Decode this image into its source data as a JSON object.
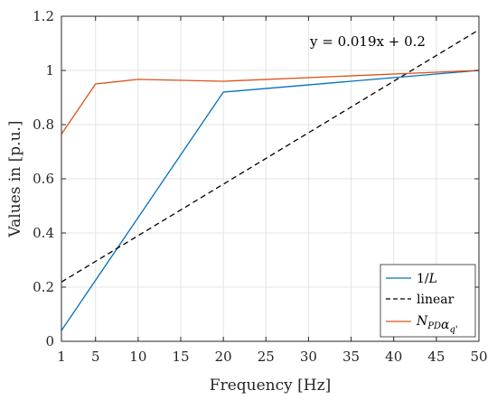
{
  "chart_data": {
    "type": "line",
    "xlabel": "Frequency [Hz]",
    "ylabel": "Values in [p.u.]",
    "xlim": [
      1,
      50
    ],
    "ylim": [
      0,
      1.2
    ],
    "x_ticks": [
      1,
      5,
      10,
      15,
      20,
      25,
      30,
      35,
      40,
      45,
      50
    ],
    "y_ticks": [
      0,
      0.2,
      0.4,
      0.6,
      0.8,
      1,
      1.2
    ],
    "x_tick_labels": [
      "1",
      "5",
      "10",
      "15",
      "20",
      "25",
      "30",
      "35",
      "40",
      "45",
      "50"
    ],
    "y_tick_labels": [
      "0",
      "0.2",
      "0.4",
      "0.6",
      "0.8",
      "1",
      "1.2"
    ],
    "grid": true,
    "legend_position": "bottom-right",
    "annotation": "y = 0.019x + 0.2",
    "series": [
      {
        "name": "1/L",
        "color": "#0072BD",
        "style": "solid",
        "x": [
          1,
          20,
          50
        ],
        "y": [
          0.04,
          0.92,
          1.0
        ]
      },
      {
        "name": "linear",
        "color": "#000000",
        "style": "dashed",
        "x": [
          1,
          50
        ],
        "y": [
          0.219,
          1.15
        ]
      },
      {
        "name": "N_PD α_q'",
        "color": "#D95319",
        "style": "solid",
        "x": [
          1,
          5,
          10,
          20,
          50
        ],
        "y": [
          0.765,
          0.95,
          0.967,
          0.96,
          1.0
        ]
      }
    ]
  }
}
